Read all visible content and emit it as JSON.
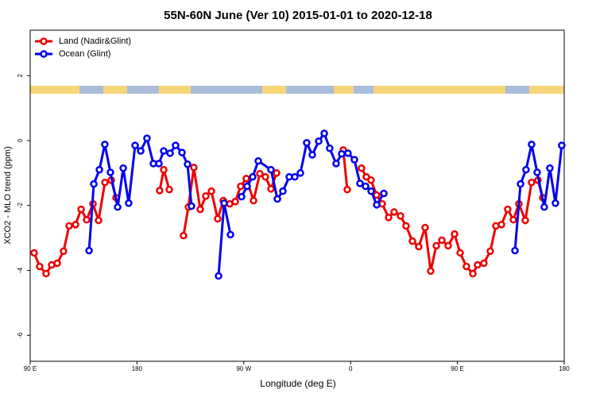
{
  "chart_data": {
    "type": "line",
    "title": "55N-60N June (Ver 10)   2015-01-01 to 2020-12-18",
    "x_label": "Longitude (deg E)",
    "y_label": "XCO2 - MLO trend (ppm)",
    "xlim": [
      90,
      540
    ],
    "ylim": [
      -6.8,
      3.4
    ],
    "xticks": [
      {
        "value": 90,
        "label": "90 E"
      },
      180,
      {
        "value": 270,
        "label": "90 W"
      },
      {
        "value": 360,
        "label": "0"
      },
      {
        "value": 450,
        "label": "90 E"
      },
      {
        "value": 540,
        "label": "180"
      }
    ],
    "yticks": [
      -6,
      -4,
      -2,
      0,
      2
    ],
    "legend": "top-left",
    "series": [
      {
        "name": "Land (Nadir&Glint)",
        "color": "#ee0000",
        "x": [
          93.3,
          98.0,
          103.4,
          108.1,
          112.8,
          118.1,
          122.8,
          128.2,
          132.9,
          137.6,
          142.9,
          147.6,
          153.0,
          158.3,
          162.3,
          null,
          199.1,
          202.5,
          207.2,
          null,
          219.2,
          223.3,
          227.9,
          233.3,
          238.0,
          242.7,
          248.0,
          252.7,
          258.1,
          262.8,
          267.4,
          272.1,
          278.2,
          283.5,
          288.2,
          292.9,
          297.6,
          null,
          353.8,
          357.2,
          null,
          369.2,
          373.2,
          377.2,
          381.9,
          386.6,
          392.0,
          396.7,
          402.0,
          406.7,
          412.1,
          417.4,
          422.8,
          427.5,
          432.2,
          436.9,
          442.2,
          447.6,
          452.3,
          457.6,
          463.0,
          467.0,
          472.3,
          477.7,
          482.4,
          487.1,
          492.4,
          497.1,
          501.8,
          507.2,
          512.5,
          517.9,
          521.9
        ],
        "values": [
          -3.46,
          -3.88,
          -4.1,
          -3.83,
          -3.78,
          -3.41,
          -2.63,
          -2.59,
          -2.12,
          -2.44,
          -1.95,
          -2.46,
          -1.29,
          -1.22,
          -1.76,
          null,
          -1.54,
          -0.9,
          -1.51,
          null,
          -2.93,
          -2.05,
          -0.83,
          -2.12,
          -1.71,
          -1.56,
          -2.41,
          -1.85,
          -1.95,
          -1.88,
          -1.41,
          -1.17,
          -1.85,
          -1.02,
          -1.12,
          -1.49,
          -1.0,
          null,
          -0.29,
          -1.51,
          null,
          -0.85,
          -1.12,
          -1.22,
          -1.68,
          -1.95,
          -2.37,
          -2.2,
          -2.32,
          -2.63,
          -3.1,
          -3.27,
          -2.68,
          -4.02,
          -3.24,
          -3.07,
          -3.24,
          -2.88,
          -3.46,
          -3.88,
          -4.1,
          -3.83,
          -3.78,
          -3.41,
          -2.63,
          -2.59,
          -2.12,
          -2.44,
          -1.95,
          -2.46,
          -1.29,
          -1.22,
          -1.76
        ]
      },
      {
        "name": "Ocean (Glint)",
        "color": "#0000ee",
        "x": [
          139.6,
          143.6,
          148.3,
          152.9,
          157.6,
          163.7,
          168.4,
          173.0,
          178.4,
          183.1,
          188.4,
          193.8,
          198.5,
          202.5,
          207.9,
          212.5,
          217.9,
          222.6,
          225.9,
          null,
          248.7,
          253.4,
          258.8,
          null,
          268.1,
          272.8,
          277.5,
          282.2,
          292.9,
          298.3,
          302.9,
          308.3,
          313.0,
          317.7,
          323.0,
          327.7,
          333.1,
          337.8,
          342.4,
          347.8,
          352.5,
          357.8,
          363.2,
          367.9,
          372.6,
          377.3,
          382.0,
          388.0,
          null,
          498.5,
          503.2,
          507.8,
          512.5,
          517.2,
          523.2,
          527.9,
          532.6,
          537.9
        ],
        "values": [
          -3.39,
          -1.34,
          -0.9,
          -0.12,
          -0.98,
          -2.05,
          -0.85,
          -1.93,
          -0.15,
          -0.32,
          0.07,
          -0.71,
          -0.71,
          -0.32,
          -0.39,
          -0.15,
          -0.37,
          -0.73,
          -2.02,
          null,
          -4.17,
          -1.93,
          -2.9,
          null,
          -1.73,
          -1.41,
          -1.12,
          -0.63,
          -0.9,
          -1.8,
          -1.56,
          -1.12,
          -1.12,
          -1.0,
          -0.07,
          -0.44,
          -0.02,
          0.22,
          -0.24,
          -0.71,
          -0.41,
          -0.39,
          -0.59,
          -1.32,
          -1.41,
          -1.56,
          -1.98,
          -1.63,
          null,
          -3.39,
          -1.34,
          -0.9,
          -0.12,
          -0.98,
          -2.05,
          -0.85,
          -1.93,
          -0.15
        ]
      }
    ]
  }
}
